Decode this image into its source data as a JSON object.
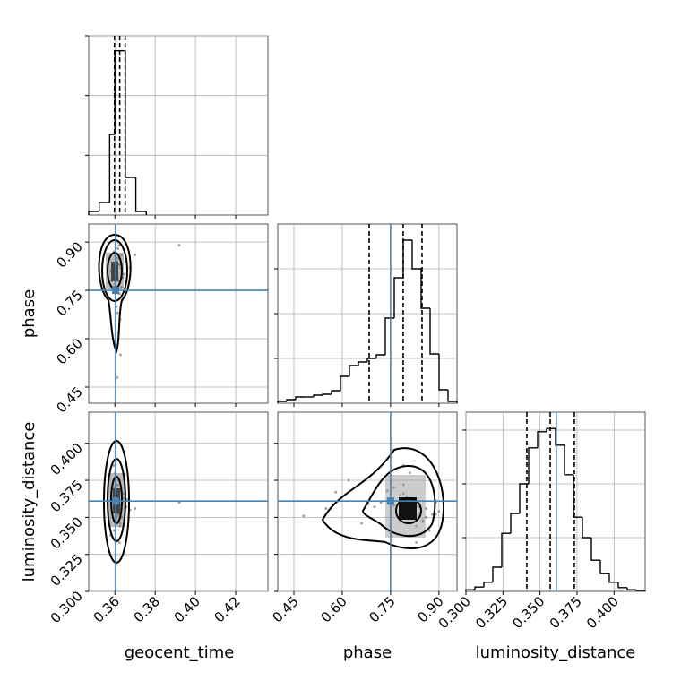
{
  "chart_data": {
    "type": "corner",
    "parameters": [
      "geocent_time",
      "phase",
      "luminosity_distance"
    ],
    "truths": [
      0.3604,
      0.75,
      0.361
    ],
    "truth_color": "#4682b4",
    "grid": true,
    "ranges": [
      [
        0.347,
        0.436
      ],
      [
        0.4,
        0.956
      ],
      [
        0.3,
        0.421
      ]
    ],
    "ticks": [
      [
        0.36,
        0.38,
        {
          "value": 0.4,
          "label": "0.40"
        },
        0.42
      ],
      [
        0.45,
        {
          "value": 0.6,
          "label": "0.60"
        },
        0.75,
        {
          "value": 0.9,
          "label": "0.90"
        }
      ],
      [
        {
          "value": 0.3,
          "label": "0.300"
        },
        0.325,
        {
          "value": 0.35,
          "label": "0.350"
        },
        0.375,
        {
          "value": 0.4,
          "label": "0.400"
        }
      ]
    ],
    "hists": [
      {
        "bins": [
          0.347,
          0.3496,
          0.3522,
          0.3548,
          0.3574,
          0.36,
          0.3626,
          0.3652,
          0.3678,
          0.3704,
          0.373,
          0.3756
        ],
        "counts": [
          0.06,
          0.06,
          0.21,
          0.21,
          1.35,
          2.75,
          2.75,
          0.63,
          0.63,
          0.06,
          0.06
        ],
        "ylim": [
          0,
          3
        ],
        "yticks": [
          1,
          2,
          3
        ],
        "quantiles": [
          0.3598,
          0.3624,
          0.3651
        ]
      },
      {
        "bins": [
          0.4,
          0.4278,
          0.4556,
          0.4834,
          0.5112,
          0.539,
          0.5668,
          0.5946,
          0.6224,
          0.6502,
          0.678,
          0.7058,
          0.7336,
          0.7614,
          0.7892,
          0.817,
          0.8448,
          0.8726,
          0.9004,
          0.9282,
          0.956
        ],
        "counts": [
          0.04,
          0.08,
          0.14,
          0.14,
          0.18,
          0.2,
          0.28,
          0.6,
          0.84,
          0.92,
          1.0,
          1.08,
          1.9,
          2.8,
          3.64,
          3.0,
          2.12,
          1.1,
          0.3,
          0.04
        ],
        "ylim": [
          0,
          4
        ],
        "yticks": [
          1,
          2,
          3
        ],
        "quantiles": [
          0.6836,
          0.789,
          0.8476
        ]
      },
      {
        "bins": [
          0.3,
          0.30605,
          0.3121,
          0.31815,
          0.3242,
          0.33025,
          0.3363,
          0.34235,
          0.3484,
          0.35445,
          0.3605,
          0.36655,
          0.3726,
          0.37865,
          0.3847,
          0.39075,
          0.3968,
          0.40285,
          0.4089,
          0.41495,
          0.421
        ],
        "counts": [
          0.03,
          0.08,
          0.17,
          0.45,
          1.08,
          1.45,
          2.0,
          2.67,
          2.97,
          3.03,
          2.72,
          2.17,
          1.38,
          1.0,
          0.58,
          0.33,
          0.17,
          0.07,
          0.03,
          0.02
        ],
        "ylim": [
          0,
          3.333
        ],
        "yticks": [
          1,
          2,
          3
        ],
        "quantiles": [
          0.3411,
          0.3569,
          0.3732
        ]
      }
    ],
    "samples": [
      [
        0.3612,
        0.362,
        0.3605,
        0.3631,
        0.3598,
        0.3615,
        0.364,
        0.3608,
        0.3625,
        0.359,
        0.3618,
        0.3633,
        0.3601,
        0.3622,
        0.361,
        0.3645,
        0.3596,
        0.3628,
        0.3614,
        0.3606,
        0.3637,
        0.3619,
        0.3602,
        0.3626,
        0.3585,
        0.3655,
        0.3611,
        0.3623,
        0.3609,
        0.3632,
        0.3617,
        0.36,
        0.3675,
        0.3592,
        0.3621,
        0.3613,
        0.358,
        0.366,
        0.37,
        0.392
      ],
      [
        0.8,
        0.78,
        0.85,
        0.82,
        0.76,
        0.88,
        0.79,
        0.7,
        0.83,
        0.81,
        0.62,
        0.86,
        0.77,
        0.74,
        0.84,
        0.8,
        0.87,
        0.55,
        0.79,
        0.82,
        0.72,
        0.9,
        0.81,
        0.66,
        0.78,
        0.84,
        0.48,
        0.83,
        0.8,
        0.76,
        0.85,
        0.58,
        0.82,
        0.79,
        0.89,
        0.68,
        0.81,
        0.75,
        0.86,
        0.89
      ],
      [
        0.355,
        0.362,
        0.348,
        0.359,
        0.37,
        0.352,
        0.366,
        0.357,
        0.344,
        0.361,
        0.375,
        0.35,
        0.358,
        0.368,
        0.353,
        0.363,
        0.341,
        0.356,
        0.372,
        0.349,
        0.36,
        0.354,
        0.38,
        0.346,
        0.365,
        0.357,
        0.351,
        0.333,
        0.364,
        0.358,
        0.347,
        0.367,
        0.355,
        0.385,
        0.352,
        0.359,
        0.338,
        0.362,
        0.356,
        0.36
      ]
    ]
  }
}
